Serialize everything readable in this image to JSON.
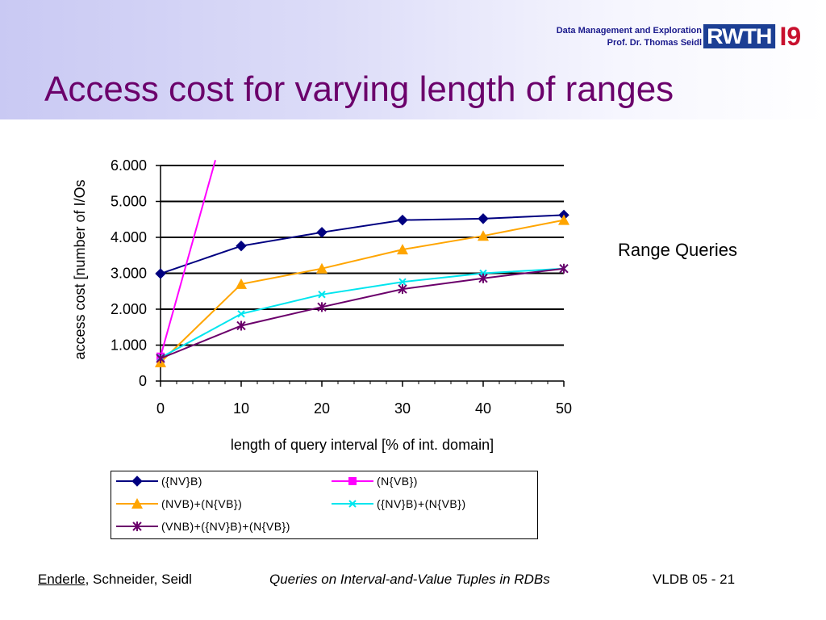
{
  "header": {
    "affiliation_line1": "Data Management and Exploration",
    "affiliation_line2": "Prof. Dr. Thomas Seidl",
    "logo_text": "RWTH",
    "logo_suffix": "I9"
  },
  "slide": {
    "title": "Access cost for varying length of ranges",
    "side_label": "Range Queries"
  },
  "colors": {
    "title": "#6b006b",
    "header_gradient_start": "#c9c9f3",
    "affiliation": "#1a1a8c",
    "logo_blue": "#1c3f94",
    "logo_red": "#c8102e"
  },
  "chart_data": {
    "type": "line",
    "xlabel": "length of query interval [% of int. domain]",
    "ylabel": "access cost [number of I/Os",
    "xlim": [
      0,
      50
    ],
    "ylim": [
      0,
      6000
    ],
    "xticks": [
      0,
      10,
      20,
      30,
      40,
      50
    ],
    "xtick_labels": [
      "0",
      "10",
      "20",
      "30",
      "40",
      "50"
    ],
    "yticks": [
      0,
      1000,
      2000,
      3000,
      4000,
      5000,
      6000
    ],
    "ytick_labels": [
      "0",
      "1.000",
      "2.000",
      "3.000",
      "4.000",
      "5.000",
      "6.000"
    ],
    "grid": "horizontal",
    "legend_position": "bottom",
    "series": [
      {
        "name": "({NV}B)",
        "color": "#000080",
        "marker": "diamond",
        "x": [
          0,
          10,
          20,
          30,
          40,
          50
        ],
        "y": [
          2990,
          3760,
          4140,
          4480,
          4520,
          4620
        ]
      },
      {
        "name": "(N{VB})",
        "color": "#ff00ff",
        "marker": "square",
        "x": [
          0,
          6.8
        ],
        "y": [
          680,
          6150
        ]
      },
      {
        "name": "(NVB)+(N{VB})",
        "color": "#ffa500",
        "marker": "triangle",
        "x": [
          0,
          10,
          20,
          30,
          40,
          50
        ],
        "y": [
          520,
          2700,
          3130,
          3660,
          4040,
          4480
        ]
      },
      {
        "name": "({NV}B)+(N{VB})",
        "color": "#00e5ee",
        "marker": "x",
        "x": [
          0,
          10,
          20,
          30,
          40,
          50
        ],
        "y": [
          650,
          1870,
          2410,
          2760,
          3000,
          3130
        ]
      },
      {
        "name": "(VNB)+({NV}B)+(N{VB})",
        "color": "#6b006b",
        "marker": "star",
        "x": [
          0,
          10,
          20,
          30,
          40,
          50
        ],
        "y": [
          630,
          1540,
          2060,
          2560,
          2860,
          3130
        ]
      }
    ]
  },
  "footer": {
    "author_lead": "Enderle",
    "authors_rest": ", Schneider, Seidl",
    "paper": "Queries on Interval-and-Value Tuples in RDBs",
    "page": "VLDB 05 - 21"
  }
}
